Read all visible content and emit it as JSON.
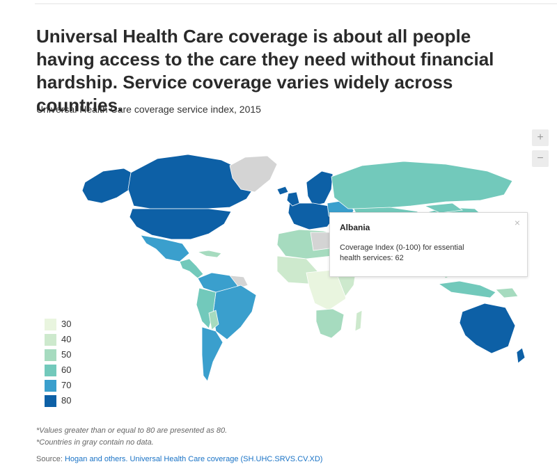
{
  "headline": "Universal Health Care coverage is about all people having access to the care they need without financial hardship. Service coverage varies widely across countries.",
  "subtitle": "Universal Health Care coverage service index, 2015",
  "zoom": {
    "in_label": "+",
    "out_label": "−"
  },
  "tooltip": {
    "title": "Albania",
    "description": "Coverage Index (0-100) for essential health services: 62",
    "close_label": "×"
  },
  "legend": {
    "items": [
      {
        "label": "30",
        "color": "#e9f5df"
      },
      {
        "label": "40",
        "color": "#cde9cd"
      },
      {
        "label": "50",
        "color": "#a6dbbf"
      },
      {
        "label": "60",
        "color": "#72c9bb"
      },
      {
        "label": "70",
        "color": "#3a9fcd"
      },
      {
        "label": "80",
        "color": "#0d60a6"
      }
    ]
  },
  "map_colors": {
    "no_data": "#d4d4d4",
    "c30": "#e9f5df",
    "c40": "#cde9cd",
    "c50": "#a6dbbf",
    "c60": "#72c9bb",
    "c70": "#3a9fcd",
    "c80": "#0d60a6"
  },
  "notes": {
    "note1": "*Values greater than or equal to 80 are presented as 80.",
    "note2": "*Countries in gray contain no data."
  },
  "source": {
    "prefix": "Source: ",
    "link_text": "Hogan and others. Universal Health Care coverage (SH.UHC.SRVS.CV.XD)"
  }
}
